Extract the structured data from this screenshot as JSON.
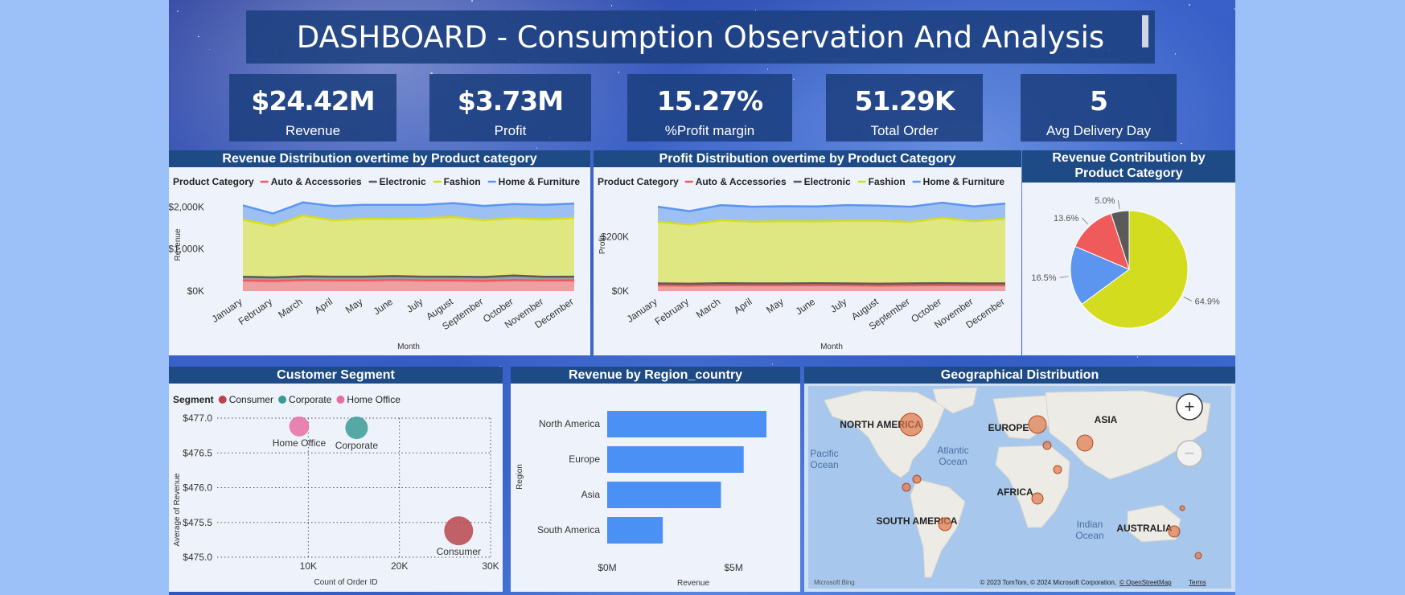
{
  "title": "DASHBOARD - Consumption Observation And Analysis",
  "kpis": [
    {
      "value": "$24.42M",
      "label": "Revenue"
    },
    {
      "value": "$3.73M",
      "label": "Profit"
    },
    {
      "value": "15.27%",
      "label": "%Profit margin"
    },
    {
      "value": "51.29K",
      "label": "Total Order"
    },
    {
      "value": "5",
      "label": "Avg Delivery Day"
    }
  ],
  "colors": {
    "auto": "#ef5a5a",
    "electronic": "#5a5a5a",
    "fashion": "#d4dc20",
    "home": "#5b95ef",
    "consumer": "#b8474c",
    "corporate": "#3a9a94",
    "homeoffice": "#e56ea3",
    "bar": "#4b90f5",
    "bubble": "#e07848"
  },
  "chart_data": [
    {
      "type": "area",
      "title": "Revenue Distribution overtime by Product category",
      "legend_title": "Product Category",
      "xlabel": "Month",
      "ylabel": "Revenue",
      "ylim": [
        0,
        2200000
      ],
      "yticks": [
        "$0K",
        "$1,000K",
        "$2,000K"
      ],
      "categories": [
        "January",
        "February",
        "March",
        "April",
        "May",
        "June",
        "July",
        "August",
        "September",
        "October",
        "November",
        "December"
      ],
      "stacked": true,
      "series": [
        {
          "name": "Auto & Accessories",
          "values": [
            250000,
            240000,
            260000,
            255000,
            250000,
            265000,
            255000,
            250000,
            245000,
            260000,
            250000,
            255000
          ]
        },
        {
          "name": "Electronic",
          "values": [
            90000,
            85000,
            90000,
            88000,
            92000,
            90000,
            88000,
            92000,
            90000,
            110000,
            90000,
            88000
          ]
        },
        {
          "name": "Fashion",
          "values": [
            1360000,
            1230000,
            1450000,
            1340000,
            1380000,
            1360000,
            1390000,
            1420000,
            1350000,
            1370000,
            1370000,
            1400000
          ]
        },
        {
          "name": "Home & Furniture",
          "values": [
            340000,
            290000,
            310000,
            340000,
            330000,
            335000,
            320000,
            330000,
            340000,
            330000,
            340000,
            340000
          ]
        }
      ]
    },
    {
      "type": "area",
      "title": "Profit Distribution overtime by Product Category",
      "legend_title": "Product Category",
      "xlabel": "Month",
      "ylabel": "Profit",
      "ylim": [
        0,
        340000
      ],
      "yticks": [
        "$0K",
        "$200K"
      ],
      "categories": [
        "January",
        "February",
        "March",
        "April",
        "May",
        "June",
        "July",
        "August",
        "September",
        "October",
        "November",
        "December"
      ],
      "stacked": true,
      "series": [
        {
          "name": "Auto & Accessories",
          "values": [
            21000,
            20000,
            22000,
            21000,
            21000,
            22000,
            21000,
            20000,
            21000,
            22000,
            21000,
            21000
          ]
        },
        {
          "name": "Electronic",
          "values": [
            7000,
            7000,
            7000,
            7000,
            7000,
            7000,
            7000,
            7000,
            7000,
            7000,
            7000,
            7000
          ]
        },
        {
          "name": "Fashion",
          "values": [
            227000,
            217000,
            232000,
            227000,
            229000,
            227000,
            231000,
            232000,
            226000,
            241000,
            229000,
            238000
          ]
        },
        {
          "name": "Home & Furniture",
          "values": [
            55000,
            50000,
            55000,
            55000,
            55000,
            55000,
            57000,
            55000,
            56000,
            55000,
            54000,
            56000
          ]
        }
      ]
    },
    {
      "type": "pie",
      "title": "Revenue Contribution by Product Category",
      "slices": [
        {
          "name": "Fashion",
          "value": 64.9,
          "label": "64.9%"
        },
        {
          "name": "Home & Furniture",
          "value": 16.5,
          "label": "16.5%"
        },
        {
          "name": "Auto & Accessories",
          "value": 13.6,
          "label": "13.6%"
        },
        {
          "name": "Electronic",
          "value": 5.0,
          "label": "5.0%"
        }
      ]
    },
    {
      "type": "scatter",
      "title": "Customer Segment",
      "legend_title": "Segment",
      "xlabel": "Count of Order ID",
      "ylabel": "Average of Revenue",
      "xlim": [
        0,
        30000
      ],
      "ylim": [
        475.0,
        477.0
      ],
      "xticks": [
        "10K",
        "20K",
        "30K"
      ],
      "yticks": [
        "$475.0",
        "$475.5",
        "$476.0",
        "$476.5",
        "$477.0"
      ],
      "points": [
        {
          "name": "Consumer",
          "x": 26500,
          "y": 475.38,
          "size": 3
        },
        {
          "name": "Corporate",
          "x": 15300,
          "y": 476.86,
          "size": 2
        },
        {
          "name": "Home Office",
          "x": 9000,
          "y": 476.88,
          "size": 1.6
        }
      ]
    },
    {
      "type": "bar",
      "title": "Revenue by Region_country",
      "xlabel": "Revenue",
      "ylabel": "Region",
      "xlim": [
        0,
        7000000
      ],
      "xticks": [
        "$0M",
        "$5M"
      ],
      "categories": [
        "North America",
        "Europe",
        "Asia",
        "South America"
      ],
      "values": [
        6300000,
        5400000,
        4500000,
        2200000
      ]
    }
  ],
  "map": {
    "title": "Geographical Distribution",
    "continents": [
      "NORTH AMERICA",
      "EUROPE",
      "ASIA",
      "AFRICA",
      "SOUTH AMERICA",
      "AUSTRALIA"
    ],
    "oceans": [
      "Pacific Ocean",
      "Atlantic Ocean",
      "Indian Ocean"
    ],
    "bing": "Microsoft Bing",
    "attribution": "© 2023 TomTom, © 2024 Microsoft Corporation,",
    "osm": "© OpenStreetMap",
    "terms": "Terms",
    "zoom_in": "+",
    "zoom_out": "−"
  }
}
